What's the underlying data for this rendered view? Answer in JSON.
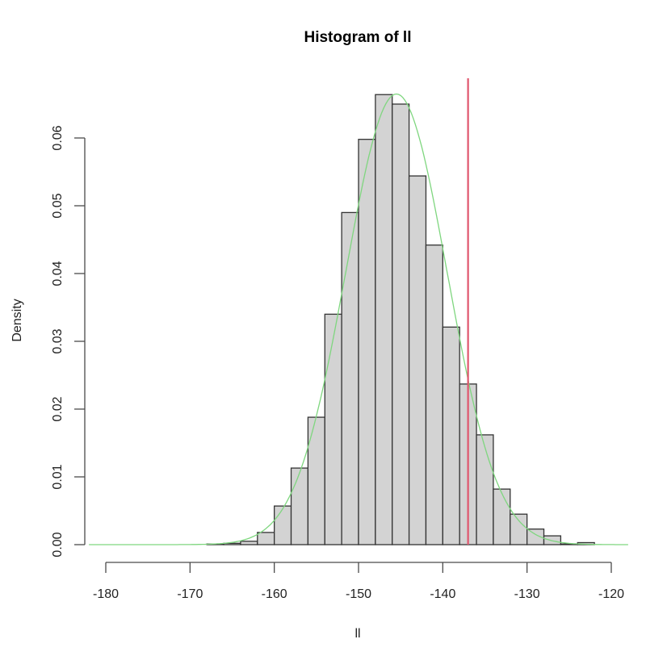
{
  "chart_data": {
    "type": "bar",
    "subtype": "histogram",
    "title": "Histogram of ll",
    "xlabel": "ll",
    "ylabel": "Density",
    "xlim": [
      -182,
      -118
    ],
    "ylim": [
      0,
      0.066
    ],
    "x_ticks": [
      -180,
      -170,
      -160,
      -150,
      -140,
      -130,
      -120
    ],
    "x_tick_labels": [
      "-180",
      "-170",
      "-160",
      "-150",
      "-140",
      "-130",
      "-120"
    ],
    "y_ticks": [
      0.0,
      0.01,
      0.02,
      0.03,
      0.04,
      0.05,
      0.06
    ],
    "y_tick_labels": [
      "0.00",
      "0.01",
      "0.02",
      "0.03",
      "0.04",
      "0.05",
      "0.06"
    ],
    "grid": false,
    "legend": null,
    "bin_width": 2,
    "bins": [
      {
        "from": -168,
        "to": -166,
        "density": 0.0001
      },
      {
        "from": -166,
        "to": -164,
        "density": 0.0002
      },
      {
        "from": -164,
        "to": -162,
        "density": 0.0005
      },
      {
        "from": -162,
        "to": -160,
        "density": 0.0018
      },
      {
        "from": -160,
        "to": -158,
        "density": 0.0057
      },
      {
        "from": -158,
        "to": -156,
        "density": 0.0113
      },
      {
        "from": -156,
        "to": -154,
        "density": 0.0188
      },
      {
        "from": -154,
        "to": -152,
        "density": 0.034
      },
      {
        "from": -152,
        "to": -150,
        "density": 0.049
      },
      {
        "from": -150,
        "to": -148,
        "density": 0.0598
      },
      {
        "from": -148,
        "to": -146,
        "density": 0.0664
      },
      {
        "from": -146,
        "to": -144,
        "density": 0.065
      },
      {
        "from": -144,
        "to": -142,
        "density": 0.0544
      },
      {
        "from": -142,
        "to": -140,
        "density": 0.0442
      },
      {
        "from": -140,
        "to": -138,
        "density": 0.0321
      },
      {
        "from": -138,
        "to": -136,
        "density": 0.0237
      },
      {
        "from": -136,
        "to": -134,
        "density": 0.0162
      },
      {
        "from": -134,
        "to": -132,
        "density": 0.0082
      },
      {
        "from": -132,
        "to": -130,
        "density": 0.0045
      },
      {
        "from": -130,
        "to": -128,
        "density": 0.0023
      },
      {
        "from": -128,
        "to": -126,
        "density": 0.0013
      },
      {
        "from": -126,
        "to": -124,
        "density": 0.0001
      },
      {
        "from": -124,
        "to": -122,
        "density": 0.0003
      }
    ],
    "categories": [
      "-167",
      "-165",
      "-163",
      "-161",
      "-159",
      "-157",
      "-155",
      "-153",
      "-151",
      "-149",
      "-147",
      "-145",
      "-143",
      "-141",
      "-139",
      "-137",
      "-135",
      "-133",
      "-131",
      "-129",
      "-127",
      "-125",
      "-123"
    ],
    "values": [
      0.0001,
      0.0002,
      0.0005,
      0.0018,
      0.0057,
      0.0113,
      0.0188,
      0.034,
      0.049,
      0.0598,
      0.0664,
      0.065,
      0.0544,
      0.0442,
      0.0321,
      0.0237,
      0.0162,
      0.0082,
      0.0045,
      0.0023,
      0.0013,
      0.0001,
      0.0003
    ],
    "overlays": [
      {
        "type": "density_curve",
        "distribution": "normal",
        "mean": -145.5,
        "sd": 6.0,
        "color": "#7fd67f",
        "x_range": [
          -182,
          -118
        ]
      },
      {
        "type": "vertical_line",
        "x": -137,
        "color": "#e0566e"
      }
    ],
    "colors": {
      "bar_fill": "#d3d3d3",
      "bar_border": "#333333",
      "curve": "#7fd67f",
      "vline": "#e0566e"
    }
  }
}
